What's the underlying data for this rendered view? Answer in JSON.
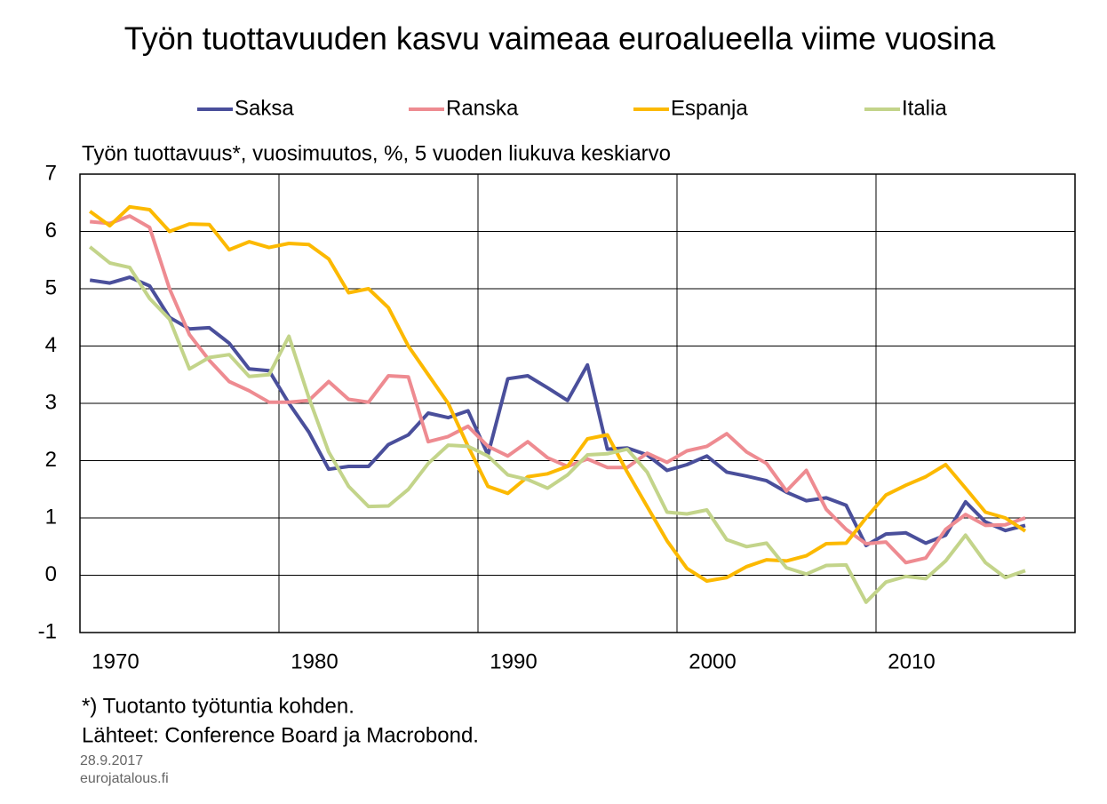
{
  "chart_data": {
    "type": "line",
    "title": "Työn tuottavuuden kasvu vaimeaa euroalueella viime vuosina",
    "subtitle": "Työn tuottavuus*, vuosimuutos, %, 5 vuoden liukuva keskiarvo",
    "notes": [
      "*) Tuotanto työtuntia kohden.",
      "Lähteet: Conference Board ja Macrobond."
    ],
    "date": "28.9.2017",
    "source": "eurojatalous.fi",
    "x": [
      1970.5,
      1971.5,
      1972.5,
      1973.5,
      1974.5,
      1975.5,
      1976.5,
      1977.5,
      1978.5,
      1979.5,
      1980.5,
      1981.5,
      1982.5,
      1983.5,
      1984.5,
      1985.5,
      1986.5,
      1987.5,
      1988.5,
      1989.5,
      1990.5,
      1991.5,
      1992.5,
      1993.5,
      1994.5,
      1995.5,
      1996.5,
      1997.5,
      1998.5,
      1999.5,
      2000.5,
      2001.5,
      2002.5,
      2003.5,
      2004.5,
      2005.5,
      2006.5,
      2007.5,
      2008.5,
      2009.5,
      2010.5,
      2011.5,
      2012.5,
      2013.5,
      2014.5,
      2015.5,
      2016.5,
      2017.5
    ],
    "series": [
      {
        "name": "Saksa",
        "color": "#4a4f9b",
        "values": [
          5.15,
          5.1,
          5.2,
          5.05,
          4.5,
          4.3,
          4.32,
          4.05,
          3.6,
          3.57,
          3.0,
          2.5,
          1.85,
          1.9,
          1.9,
          2.28,
          2.45,
          2.83,
          2.75,
          2.87,
          2.1,
          3.43,
          3.48,
          3.27,
          3.05,
          3.67,
          2.2,
          2.22,
          2.1,
          1.83,
          1.93,
          2.08,
          1.8,
          1.73,
          1.65,
          1.45,
          1.3,
          1.35,
          1.22,
          0.52,
          0.72,
          0.74,
          0.56,
          0.7,
          1.28,
          0.93,
          0.78,
          0.87
        ]
      },
      {
        "name": "Ranska",
        "color": "#ee8b91",
        "values": [
          6.17,
          6.14,
          6.27,
          6.07,
          5.0,
          4.2,
          3.75,
          3.38,
          3.22,
          3.02,
          3.02,
          3.05,
          3.38,
          3.07,
          3.02,
          3.48,
          3.46,
          2.33,
          2.42,
          2.6,
          2.25,
          2.08,
          2.33,
          2.05,
          1.9,
          2.03,
          1.88,
          1.88,
          2.13,
          1.97,
          2.17,
          2.25,
          2.47,
          2.15,
          1.95,
          1.47,
          1.83,
          1.15,
          0.8,
          0.55,
          0.58,
          0.22,
          0.3,
          0.8,
          1.06,
          0.87,
          0.88,
          1.0
        ]
      },
      {
        "name": "Espanja",
        "color": "#fcb900",
        "values": [
          6.35,
          6.1,
          6.43,
          6.38,
          6.0,
          6.13,
          6.12,
          5.68,
          5.82,
          5.72,
          5.79,
          5.77,
          5.52,
          4.93,
          5.0,
          4.67,
          4.0,
          3.5,
          3.0,
          2.25,
          1.55,
          1.43,
          1.72,
          1.77,
          1.9,
          2.38,
          2.45,
          1.8,
          1.2,
          0.6,
          0.12,
          -0.1,
          -0.04,
          0.15,
          0.27,
          0.25,
          0.34,
          0.55,
          0.56,
          1.0,
          1.4,
          1.57,
          1.72,
          1.93,
          1.52,
          1.1,
          1.0,
          0.77
        ]
      },
      {
        "name": "Italia",
        "color": "#c3d48a",
        "values": [
          5.73,
          5.45,
          5.37,
          4.83,
          4.47,
          3.6,
          3.8,
          3.85,
          3.47,
          3.5,
          4.17,
          3.1,
          2.15,
          1.55,
          1.2,
          1.21,
          1.5,
          1.95,
          2.27,
          2.25,
          2.08,
          1.75,
          1.67,
          1.52,
          1.75,
          2.1,
          2.12,
          2.2,
          1.8,
          1.1,
          1.07,
          1.14,
          0.62,
          0.5,
          0.56,
          0.13,
          0.02,
          0.17,
          0.18,
          -0.47,
          -0.12,
          -0.02,
          -0.06,
          0.25,
          0.7,
          0.22,
          -0.04,
          0.08
        ]
      }
    ],
    "xlim": [
      1970,
      2020
    ],
    "xticks": [
      1970,
      1980,
      1990,
      2000,
      2010
    ],
    "ylim": [
      -1,
      7
    ],
    "yticks": [
      -1,
      0,
      1,
      2,
      3,
      4,
      5,
      6,
      7
    ],
    "grid": true,
    "legend": "top"
  }
}
